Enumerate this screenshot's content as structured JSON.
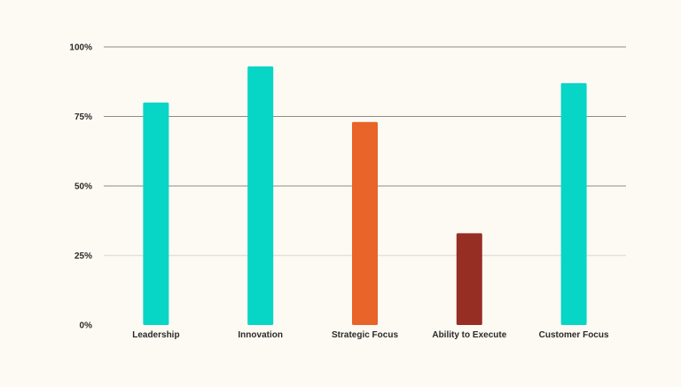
{
  "chart_data": {
    "type": "bar",
    "categories": [
      "Leadership",
      "Innovation",
      "Strategic Focus",
      "Ability to Execute",
      "Customer Focus"
    ],
    "values": [
      80,
      93,
      73,
      33,
      87
    ],
    "bar_colors": [
      "#07d6c6",
      "#07d6c6",
      "#e86428",
      "#972e24",
      "#07d6c6"
    ],
    "ylim": [
      0,
      100
    ],
    "yticks": [
      0,
      25,
      50,
      75,
      100
    ],
    "ytick_labels": [
      "0%",
      "25%",
      "50%",
      "75%",
      "100%"
    ],
    "title": "",
    "xlabel": "",
    "ylabel": "",
    "grid": true,
    "legend": "none"
  },
  "colors": {
    "background": "#fdfaf3",
    "grid_strong": "#8c8c8c",
    "grid_light": "#e3e1dc",
    "text": "#2a2a2a"
  }
}
